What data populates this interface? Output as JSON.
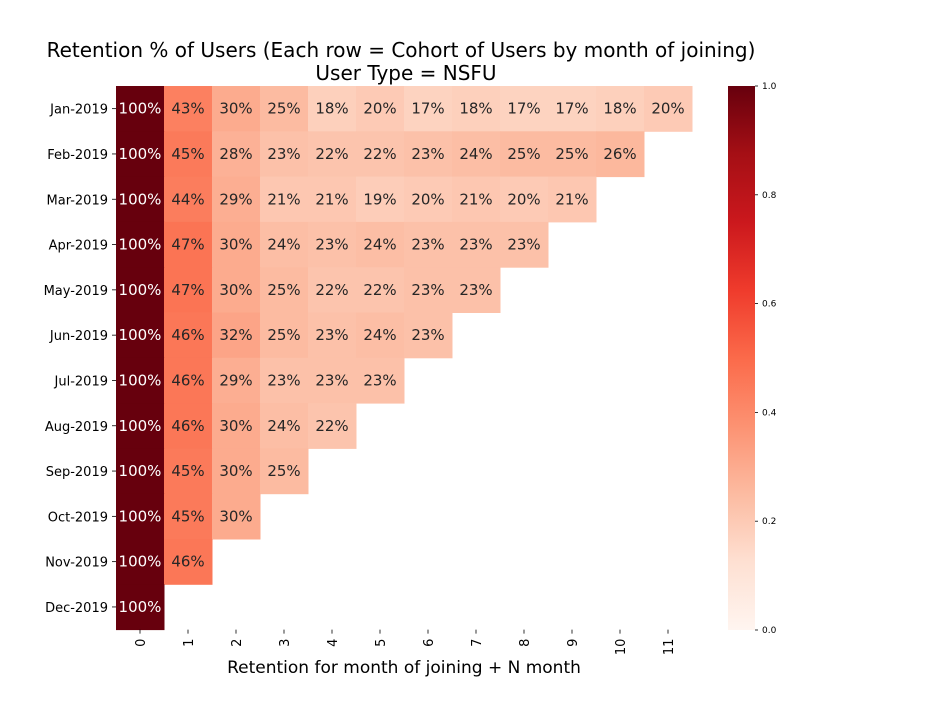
{
  "chart_data": {
    "type": "heatmap",
    "title": "Retention % of Users (Each row = Cohort of Users by month of joining)",
    "subtitle": "User Type = NSFU",
    "xlabel": "Retention for month of joining + N month",
    "ylabel": "",
    "colormap": "Reds",
    "color_range": [
      0.0,
      1.0
    ],
    "colorbar_ticks": [
      "0.0",
      "0.2",
      "0.4",
      "0.6",
      "0.8",
      "1.0"
    ],
    "x_ticks": [
      "0",
      "1",
      "2",
      "3",
      "4",
      "5",
      "6",
      "7",
      "8",
      "9",
      "10",
      "11"
    ],
    "rows": [
      {
        "cohort": "Jan-2019",
        "values": [
          1.0,
          0.43,
          0.3,
          0.25,
          0.18,
          0.2,
          0.17,
          0.18,
          0.17,
          0.17,
          0.18,
          0.2
        ],
        "labels": [
          "100%",
          "43%",
          "30%",
          "25%",
          "18%",
          "20%",
          "17%",
          "18%",
          "17%",
          "17%",
          "18%",
          "20%"
        ]
      },
      {
        "cohort": "Feb-2019",
        "values": [
          1.0,
          0.45,
          0.28,
          0.23,
          0.22,
          0.22,
          0.23,
          0.24,
          0.25,
          0.25,
          0.26
        ],
        "labels": [
          "100%",
          "45%",
          "28%",
          "23%",
          "22%",
          "22%",
          "23%",
          "24%",
          "25%",
          "25%",
          "26%"
        ]
      },
      {
        "cohort": "Mar-2019",
        "values": [
          1.0,
          0.44,
          0.29,
          0.21,
          0.21,
          0.19,
          0.2,
          0.21,
          0.2,
          0.21
        ],
        "labels": [
          "100%",
          "44%",
          "29%",
          "21%",
          "21%",
          "19%",
          "20%",
          "21%",
          "20%",
          "21%"
        ]
      },
      {
        "cohort": "Apr-2019",
        "values": [
          1.0,
          0.47,
          0.3,
          0.24,
          0.23,
          0.24,
          0.23,
          0.23,
          0.23
        ],
        "labels": [
          "100%",
          "47%",
          "30%",
          "24%",
          "23%",
          "24%",
          "23%",
          "23%",
          "23%"
        ]
      },
      {
        "cohort": "May-2019",
        "values": [
          1.0,
          0.47,
          0.3,
          0.25,
          0.22,
          0.22,
          0.23,
          0.23
        ],
        "labels": [
          "100%",
          "47%",
          "30%",
          "25%",
          "22%",
          "22%",
          "23%",
          "23%"
        ]
      },
      {
        "cohort": "Jun-2019",
        "values": [
          1.0,
          0.46,
          0.32,
          0.25,
          0.23,
          0.24,
          0.23
        ],
        "labels": [
          "100%",
          "46%",
          "32%",
          "25%",
          "23%",
          "24%",
          "23%"
        ]
      },
      {
        "cohort": "Jul-2019",
        "values": [
          1.0,
          0.46,
          0.29,
          0.23,
          0.23,
          0.23
        ],
        "labels": [
          "100%",
          "46%",
          "29%",
          "23%",
          "23%",
          "23%"
        ]
      },
      {
        "cohort": "Aug-2019",
        "values": [
          1.0,
          0.46,
          0.3,
          0.24,
          0.22
        ],
        "labels": [
          "100%",
          "46%",
          "30%",
          "24%",
          "22%"
        ]
      },
      {
        "cohort": "Sep-2019",
        "values": [
          1.0,
          0.45,
          0.3,
          0.25
        ],
        "labels": [
          "100%",
          "45%",
          "30%",
          "25%"
        ]
      },
      {
        "cohort": "Oct-2019",
        "values": [
          1.0,
          0.45,
          0.3
        ],
        "labels": [
          "100%",
          "45%",
          "30%"
        ]
      },
      {
        "cohort": "Nov-2019",
        "values": [
          1.0,
          0.46
        ],
        "labels": [
          "100%",
          "46%"
        ]
      },
      {
        "cohort": "Dec-2019",
        "values": [
          1.0
        ],
        "labels": [
          "100%"
        ]
      }
    ],
    "grid": false,
    "legend": "colorbar-right"
  }
}
